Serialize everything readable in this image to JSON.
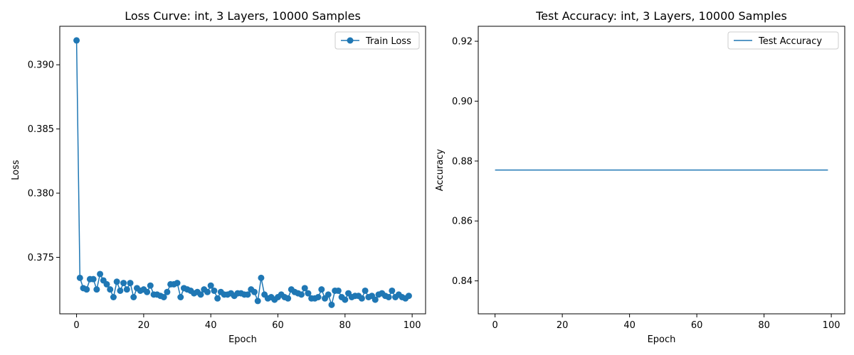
{
  "chart_data": [
    {
      "type": "line",
      "title": "Loss Curve: int, 3 Layers, 10000 Samples",
      "xlabel": "Epoch",
      "ylabel": "Loss",
      "xlim": [
        -5,
        104
      ],
      "ylim": [
        0.3706,
        0.393
      ],
      "xticks": [
        0,
        20,
        40,
        60,
        80,
        100
      ],
      "yticks": [
        0.375,
        0.38,
        0.385,
        0.39
      ],
      "ytick_labels": [
        "0.375",
        "0.380",
        "0.385",
        "0.390"
      ],
      "grid": false,
      "legend_position": "top-right",
      "series": [
        {
          "name": "Train Loss",
          "color": "#1f77b4",
          "marker": "circle",
          "x": [
            0,
            1,
            2,
            3,
            4,
            5,
            6,
            7,
            8,
            9,
            10,
            11,
            12,
            13,
            14,
            15,
            16,
            17,
            18,
            19,
            20,
            21,
            22,
            23,
            24,
            25,
            26,
            27,
            28,
            29,
            30,
            31,
            32,
            33,
            34,
            35,
            36,
            37,
            38,
            39,
            40,
            41,
            42,
            43,
            44,
            45,
            46,
            47,
            48,
            49,
            50,
            51,
            52,
            53,
            54,
            55,
            56,
            57,
            58,
            59,
            60,
            61,
            62,
            63,
            64,
            65,
            66,
            67,
            68,
            69,
            70,
            71,
            72,
            73,
            74,
            75,
            76,
            77,
            78,
            79,
            80,
            81,
            82,
            83,
            84,
            85,
            86,
            87,
            88,
            89,
            90,
            91,
            92,
            93,
            94,
            95,
            96,
            97,
            98,
            99
          ],
          "values": [
            0.3919,
            0.3734,
            0.3726,
            0.3725,
            0.3733,
            0.3733,
            0.3725,
            0.3737,
            0.3732,
            0.3729,
            0.3725,
            0.3719,
            0.3731,
            0.3724,
            0.373,
            0.3725,
            0.373,
            0.3719,
            0.3726,
            0.3724,
            0.3725,
            0.3723,
            0.3728,
            0.3721,
            0.3721,
            0.372,
            0.3719,
            0.3723,
            0.3729,
            0.3729,
            0.373,
            0.3719,
            0.3726,
            0.3725,
            0.3724,
            0.3722,
            0.3723,
            0.3721,
            0.3725,
            0.3723,
            0.3728,
            0.3724,
            0.3718,
            0.3723,
            0.3721,
            0.3721,
            0.3722,
            0.372,
            0.3722,
            0.3722,
            0.3721,
            0.3721,
            0.3725,
            0.3723,
            0.3716,
            0.3734,
            0.3721,
            0.3718,
            0.3719,
            0.3717,
            0.3719,
            0.3721,
            0.3719,
            0.3718,
            0.3725,
            0.3723,
            0.3722,
            0.3721,
            0.3726,
            0.3722,
            0.3718,
            0.3718,
            0.3719,
            0.3725,
            0.3718,
            0.3721,
            0.3713,
            0.3724,
            0.3724,
            0.3719,
            0.3717,
            0.3722,
            0.3719,
            0.372,
            0.372,
            0.3718,
            0.3724,
            0.3719,
            0.372,
            0.3717,
            0.3721,
            0.3722,
            0.372,
            0.3719,
            0.3724,
            0.3719,
            0.3721,
            0.3719,
            0.3718,
            0.372
          ]
        }
      ]
    },
    {
      "type": "line",
      "title": "Test Accuracy: int, 3 Layers, 10000 Samples",
      "xlabel": "Epoch",
      "ylabel": "Accuracy",
      "xlim": [
        -5,
        104
      ],
      "ylim": [
        0.829,
        0.925
      ],
      "xticks": [
        0,
        20,
        40,
        60,
        80,
        100
      ],
      "yticks": [
        0.84,
        0.86,
        0.88,
        0.9,
        0.92
      ],
      "ytick_labels": [
        "0.84",
        "0.86",
        "0.88",
        "0.90",
        "0.92"
      ],
      "grid": false,
      "legend_position": "top-right",
      "series": [
        {
          "name": "Test Accuracy",
          "color": "#1f77b4",
          "marker": "none",
          "x": [
            0,
            99
          ],
          "values": [
            0.877,
            0.877
          ]
        }
      ]
    }
  ]
}
